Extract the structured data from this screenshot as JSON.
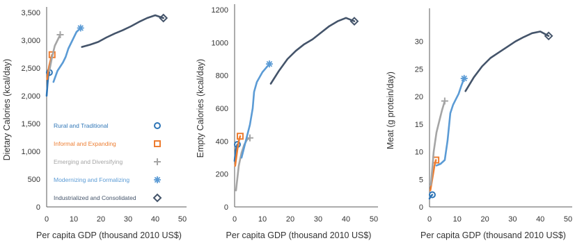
{
  "colors": {
    "rural": "#2e75b6",
    "informal": "#ed7d31",
    "emerging": "#a5a5a5",
    "modernizing": "#5b9bd5",
    "industrialized": "#44546a"
  },
  "legend": {
    "placement": "lower-right of first panel",
    "items": [
      {
        "key": "rural",
        "label": "Rural and Traditional",
        "marker": "circle"
      },
      {
        "key": "informal",
        "label": "Informal and Expanding",
        "marker": "square"
      },
      {
        "key": "emerging",
        "label": "Emerging and Diversifying",
        "marker": "plus"
      },
      {
        "key": "modernizing",
        "label": "Modernizing and Formalizing",
        "marker": "asterisk"
      },
      {
        "key": "industrialized",
        "label": "Industrialized and Consolidated",
        "marker": "diamond"
      }
    ]
  },
  "chart_data": [
    {
      "type": "line",
      "xlabel": "Per capita GDP (thousand 2010 US$)",
      "ylabel": "Dietary Calories (kcal/day)",
      "xlim": [
        0,
        50
      ],
      "ylim": [
        0,
        3500
      ],
      "xticks": [
        "0",
        "10",
        "20",
        "30",
        "40",
        "50"
      ],
      "yticks": [
        "0",
        "500",
        "1,000",
        "1,500",
        "2,000",
        "2,500",
        "3,000",
        "3,500"
      ],
      "grid": false,
      "series": [
        {
          "key": "rural",
          "name": "Rural and Traditional",
          "x": [
            0.0,
            0.3,
            0.6,
            1.0
          ],
          "y": [
            2000,
            2200,
            2350,
            2420
          ]
        },
        {
          "key": "informal",
          "name": "Informal and Expanding",
          "x": [
            0.2,
            0.6,
            1.0,
            1.5,
            2.0
          ],
          "y": [
            2300,
            2450,
            2550,
            2650,
            2740
          ]
        },
        {
          "key": "emerging",
          "name": "Emerging and Diversifying",
          "x": [
            1.0,
            2.0,
            3.0,
            4.0,
            5.0
          ],
          "y": [
            2450,
            2700,
            2900,
            3000,
            3100
          ]
        },
        {
          "key": "modernizing",
          "name": "Modernizing and Formalizing",
          "x": [
            2.5,
            4.0,
            6.0,
            7.0,
            8.0,
            9.0,
            10.0,
            11.0,
            12.5
          ],
          "y": [
            2250,
            2450,
            2600,
            2700,
            2850,
            2950,
            3050,
            3150,
            3220
          ]
        },
        {
          "key": "industrialized",
          "name": "Industrialized and Consolidated",
          "x": [
            13,
            16,
            19,
            22,
            25,
            28,
            31,
            34,
            37,
            40,
            43
          ],
          "y": [
            2880,
            2920,
            2970,
            3050,
            3120,
            3180,
            3250,
            3330,
            3400,
            3450,
            3400
          ]
        }
      ]
    },
    {
      "type": "line",
      "xlabel": "Per capita GDP (thousand 2010 US$)",
      "ylabel": "Empty Calories (kcal/day)",
      "xlim": [
        0,
        50
      ],
      "ylim": [
        0,
        1200
      ],
      "xticks": [
        "0",
        "10",
        "20",
        "30",
        "40",
        "50"
      ],
      "yticks": [
        "0",
        "200",
        "400",
        "600",
        "800",
        "1000",
        "1200"
      ],
      "grid": false,
      "series": [
        {
          "key": "rural",
          "name": "Rural and Traditional",
          "x": [
            0.0,
            0.3,
            0.6,
            1.0
          ],
          "y": [
            280,
            330,
            360,
            380
          ]
        },
        {
          "key": "informal",
          "name": "Informal and Expanding",
          "x": [
            0.2,
            0.6,
            1.0,
            1.5,
            2.0
          ],
          "y": [
            250,
            300,
            350,
            400,
            430
          ]
        },
        {
          "key": "emerging",
          "name": "Emerging and Diversifying",
          "x": [
            0.5,
            1.5,
            2.5,
            3.5,
            4.5,
            5.5
          ],
          "y": [
            100,
            250,
            330,
            380,
            410,
            420
          ]
        },
        {
          "key": "modernizing",
          "name": "Modernizing and Formalizing",
          "x": [
            2.5,
            4.0,
            5.5,
            6.5,
            7.0,
            8.0,
            9.0,
            10.0,
            11.0,
            12.5
          ],
          "y": [
            300,
            400,
            500,
            600,
            700,
            760,
            790,
            820,
            840,
            870
          ]
        },
        {
          "key": "industrialized",
          "name": "Industrialized and Consolidated",
          "x": [
            13,
            16,
            19,
            22,
            25,
            28,
            31,
            34,
            37,
            40,
            43
          ],
          "y": [
            750,
            830,
            900,
            950,
            990,
            1020,
            1060,
            1100,
            1130,
            1150,
            1130
          ]
        }
      ]
    },
    {
      "type": "line",
      "xlabel": "Per capita GDP (thousand 2010 US$)",
      "ylabel": "Meat (g protein/day)",
      "xlim": [
        0,
        50
      ],
      "ylim": [
        0,
        35
      ],
      "xticks": [
        "0",
        "10",
        "20",
        "30",
        "40",
        "50"
      ],
      "yticks": [
        "0",
        "5",
        "10",
        "15",
        "20",
        "25",
        "30"
      ],
      "grid": false,
      "series": [
        {
          "key": "rural",
          "name": "Rural and Traditional",
          "x": [
            0.0,
            0.3,
            0.6,
            1.0
          ],
          "y": [
            1.5,
            1.8,
            2.0,
            2.2
          ]
        },
        {
          "key": "informal",
          "name": "Informal and Expanding",
          "x": [
            0.3,
            0.8,
            1.3,
            1.8,
            2.3
          ],
          "y": [
            3.0,
            4.5,
            6.0,
            7.5,
            8.5
          ]
        },
        {
          "key": "emerging",
          "name": "Emerging and Diversifying",
          "x": [
            0.5,
            1.5,
            2.5,
            3.5,
            4.5,
            5.5
          ],
          "y": [
            4.0,
            10.0,
            13.5,
            15.5,
            17.5,
            19.2
          ]
        },
        {
          "key": "modernizing",
          "name": "Modernizing and Formalizing",
          "x": [
            2.5,
            4.0,
            5.5,
            6.5,
            7.5,
            8.5,
            9.5,
            10.5,
            11.5,
            12.5
          ],
          "y": [
            7.5,
            7.8,
            8.5,
            12.0,
            17.0,
            18.5,
            19.5,
            20.5,
            22.0,
            23.3
          ]
        },
        {
          "key": "industrialized",
          "name": "Industrialized and Consolidated",
          "x": [
            13,
            16,
            19,
            22,
            25,
            28,
            31,
            34,
            37,
            40,
            43
          ],
          "y": [
            21.0,
            23.5,
            25.5,
            27.0,
            28.0,
            29.0,
            30.0,
            30.8,
            31.5,
            31.8,
            31.0
          ]
        }
      ]
    }
  ]
}
